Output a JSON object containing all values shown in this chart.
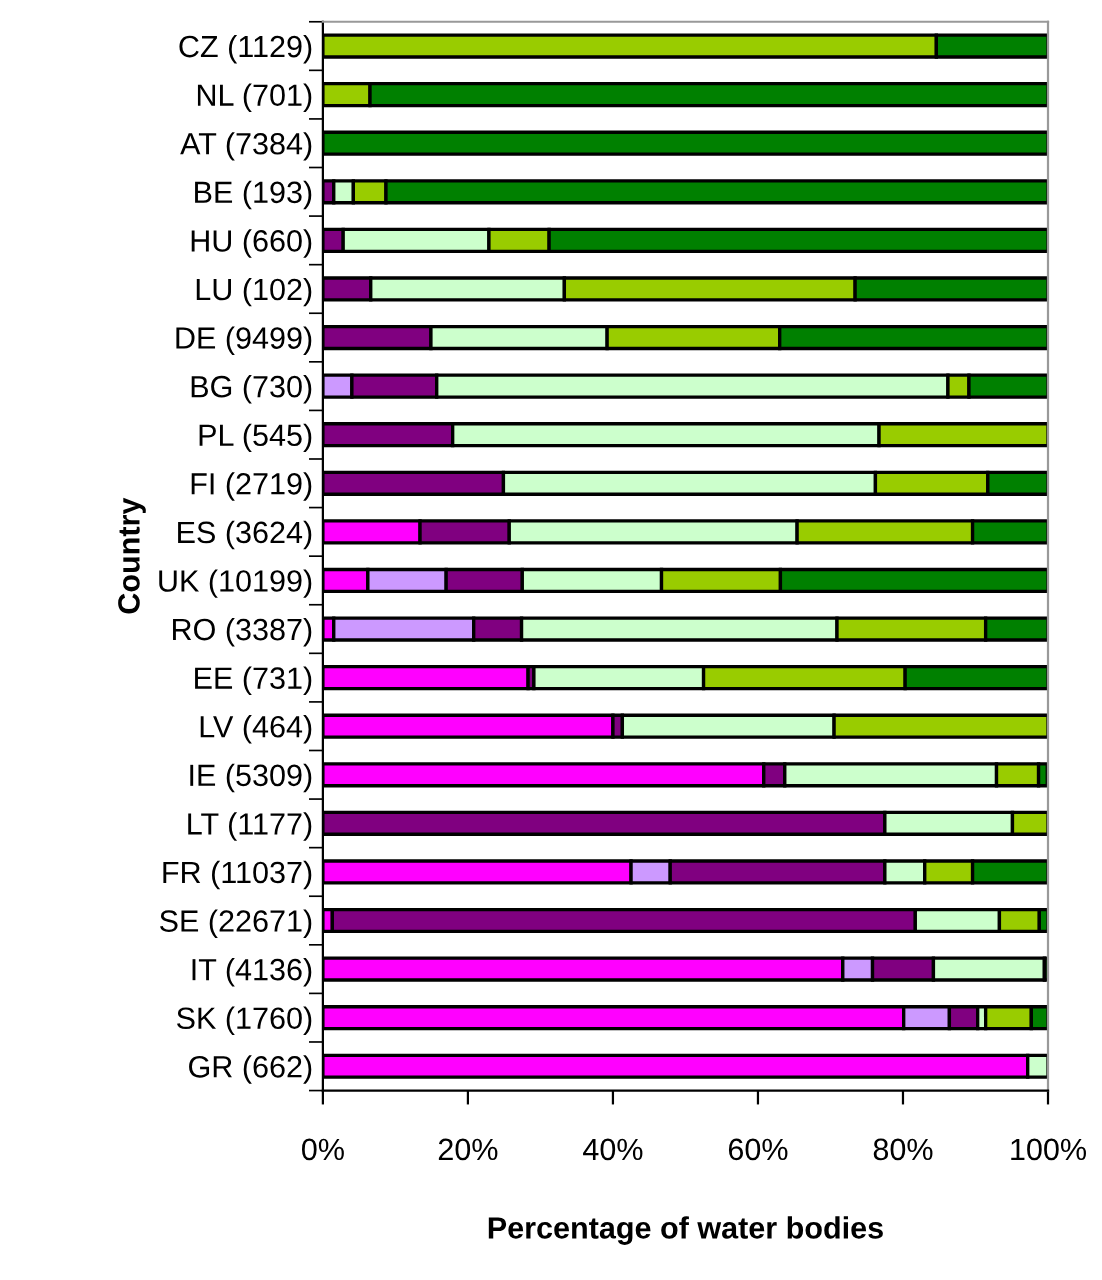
{
  "chart_data": {
    "type": "bar",
    "orientation": "horizontal",
    "stacked": true,
    "xlabel": "Percentage of water bodies",
    "ylabel": "Country",
    "categories": [
      "CZ (1129)",
      "NL (701)",
      "AT (7384)",
      "BE (193)",
      "HU (660)",
      "LU (102)",
      "DE (9499)",
      "BG (730)",
      "PL (545)",
      "FI (2719)",
      "ES (3624)",
      "UK (10199)",
      "RO (3387)",
      "EE (731)",
      "LV (464)",
      "IE (5309)",
      "LT (1177)",
      "FR (11037)",
      "SE (22671)",
      "IT (4136)",
      "SK (1760)",
      "GR (662)"
    ],
    "series": [
      {
        "color": "#ff00ff",
        "values": [
          null,
          null,
          null,
          null,
          null,
          null,
          null,
          null,
          null,
          null,
          13.4,
          6.2,
          1.5,
          28.3,
          40.0,
          60.8,
          null,
          42.5,
          1.3,
          71.7,
          80.1,
          97.2
        ]
      },
      {
        "color": "#cc99ff",
        "values": [
          null,
          null,
          null,
          null,
          null,
          null,
          null,
          4.0,
          null,
          null,
          null,
          10.8,
          19.3,
          null,
          null,
          null,
          null,
          5.4,
          null,
          4.1,
          6.3,
          null
        ]
      },
      {
        "color": "#800080",
        "values": [
          null,
          null,
          null,
          1.5,
          2.8,
          6.6,
          14.9,
          11.7,
          17.9,
          24.9,
          12.3,
          10.5,
          6.6,
          0.8,
          1.3,
          2.9,
          77.5,
          29.6,
          80.4,
          8.4,
          3.9,
          null
        ]
      },
      {
        "color": "#ccffcc",
        "values": [
          null,
          null,
          null,
          2.7,
          20.1,
          26.7,
          24.3,
          70.5,
          58.8,
          51.3,
          39.7,
          19.2,
          43.5,
          23.4,
          29.2,
          29.2,
          17.6,
          5.5,
          11.6,
          15.3,
          1.1,
          2.8
        ]
      },
      {
        "color": "#99cc00",
        "values": [
          84.6,
          6.5,
          null,
          4.5,
          8.3,
          40.1,
          23.8,
          2.9,
          23.3,
          15.5,
          24.2,
          16.4,
          20.5,
          27.8,
          29.5,
          5.8,
          4.9,
          6.6,
          5.5,
          null,
          6.3,
          null
        ]
      },
      {
        "color": "#008000",
        "values": [
          15.4,
          93.5,
          100,
          91.3,
          68.8,
          26.6,
          37.0,
          10.9,
          null,
          8.3,
          10.4,
          36.9,
          8.6,
          19.7,
          null,
          1.2,
          null,
          10.4,
          1.2,
          0.5,
          2.3,
          null
        ]
      }
    ],
    "xlim": [
      0,
      100
    ],
    "xticks": [
      {
        "value": 0,
        "label": "0%"
      },
      {
        "value": 20,
        "label": "20%"
      },
      {
        "value": 40,
        "label": "40%"
      },
      {
        "value": 60,
        "label": "60%"
      },
      {
        "value": 80,
        "label": "80%"
      },
      {
        "value": 100,
        "label": "100%"
      }
    ],
    "grid": false,
    "legend": false
  }
}
